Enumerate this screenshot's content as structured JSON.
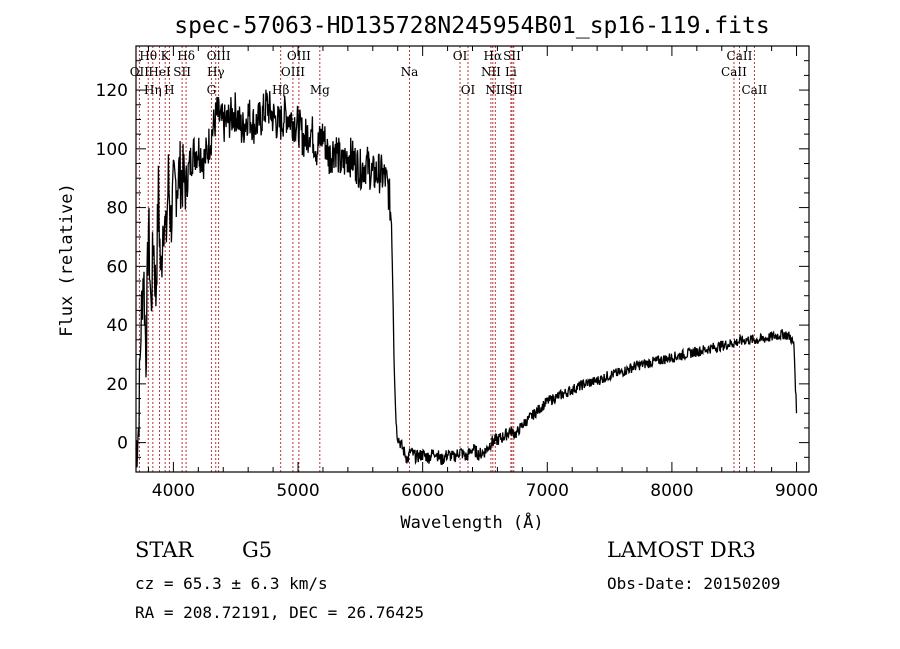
{
  "chart_data": {
    "type": "line",
    "title": "spec-57063-HD135728N245954B01_sp16-119.fits",
    "xlabel": "Wavelength (Å)",
    "ylabel": "Flux (relative)",
    "xlim": [
      3700,
      9100
    ],
    "ylim": [
      -10,
      135
    ],
    "xticks": [
      4000,
      5000,
      6000,
      7000,
      8000,
      9000
    ],
    "yticks": [
      0,
      20,
      40,
      60,
      80,
      100,
      120
    ],
    "grid": false,
    "series": [
      {
        "x": [
          3700,
          3720,
          3740,
          3760,
          3780,
          3800,
          3820,
          3840,
          3860,
          3880,
          3900,
          3920,
          3940,
          3960,
          3980,
          4000,
          4050,
          4100,
          4150,
          4200,
          4250,
          4300,
          4350,
          4400,
          4450,
          4500,
          4550,
          4600,
          4650,
          4700,
          4750,
          4800,
          4850,
          4900,
          4950,
          5000,
          5050,
          5100,
          5150,
          5200,
          5250,
          5300,
          5350,
          5400,
          5450,
          5500,
          5550,
          5600,
          5650,
          5700,
          5730,
          5750,
          5760,
          5770,
          5780,
          5790,
          5800,
          5820,
          5840,
          5860,
          5880,
          5900,
          5950,
          6000,
          6050,
          6100,
          6150,
          6200,
          6250,
          6300,
          6350,
          6400,
          6450,
          6500,
          6550,
          6600,
          6650,
          6700,
          6750,
          6800,
          6850,
          6900,
          6950,
          7000,
          7100,
          7200,
          7300,
          7400,
          7500,
          7600,
          7700,
          7800,
          7900,
          8000,
          8100,
          8200,
          8300,
          8400,
          8500,
          8600,
          8700,
          8800,
          8900,
          8950,
          8980,
          9000
        ],
        "y": [
          -2,
          5,
          40,
          60,
          30,
          75,
          45,
          70,
          50,
          85,
          55,
          80,
          68,
          90,
          75,
          85,
          92,
          88,
          98,
          100,
          96,
          104,
          112,
          108,
          110,
          113,
          106,
          112,
          108,
          110,
          115,
          111,
          108,
          112,
          110,
          108,
          103,
          107,
          100,
          105,
          97,
          101,
          94,
          98,
          96,
          93,
          95,
          91,
          92,
          90,
          85,
          75,
          55,
          30,
          15,
          5,
          2,
          0,
          -2,
          -4,
          -6,
          -3,
          -5,
          -4,
          -5,
          -3,
          -6,
          -4,
          -5,
          -3,
          -5,
          -2,
          -4,
          -3,
          0,
          1,
          2,
          4,
          3,
          6,
          8,
          10,
          12,
          14,
          16,
          18,
          20,
          21,
          23,
          24,
          26,
          27,
          28,
          29,
          30,
          31,
          32,
          33,
          34,
          35,
          35,
          36,
          37,
          36,
          33,
          10
        ]
      }
    ],
    "line_markers": [
      {
        "label": "Hθ",
        "x": 3798,
        "row": 1
      },
      {
        "label": "OII",
        "x": 3727,
        "row": 2
      },
      {
        "label": "Hη",
        "x": 3835,
        "row": 3
      },
      {
        "label": "HeI",
        "x": 3889,
        "row": 2
      },
      {
        "label": "K",
        "x": 3934,
        "row": 1
      },
      {
        "label": "H",
        "x": 3968,
        "row": 3
      },
      {
        "label": "SII",
        "x": 4070,
        "row": 2
      },
      {
        "label": "Hδ",
        "x": 4102,
        "row": 1
      },
      {
        "label": "G",
        "x": 4305,
        "row": 3
      },
      {
        "label": "Hγ",
        "x": 4340,
        "row": 2
      },
      {
        "label": "OIII",
        "x": 4363,
        "row": 1
      },
      {
        "label": "Hβ",
        "x": 4861,
        "row": 3
      },
      {
        "label": "OIII",
        "x": 4959,
        "row": 2
      },
      {
        "label": "OIII",
        "x": 5007,
        "row": 1
      },
      {
        "label": "Mg",
        "x": 5175,
        "row": 3
      },
      {
        "label": "Na",
        "x": 5894,
        "row": 2
      },
      {
        "label": "OI",
        "x": 6300,
        "row": 1
      },
      {
        "label": "OI",
        "x": 6364,
        "row": 3
      },
      {
        "label": "NII",
        "x": 6548,
        "row": 2
      },
      {
        "label": "Hα",
        "x": 6563,
        "row": 1
      },
      {
        "label": "NII",
        "x": 6583,
        "row": 3
      },
      {
        "label": "Li",
        "x": 6708,
        "row": 2
      },
      {
        "label": "SII",
        "x": 6717,
        "row": 1
      },
      {
        "label": "SII",
        "x": 6731,
        "row": 3
      },
      {
        "label": "CaII",
        "x": 8498,
        "row": 2
      },
      {
        "label": "CaII",
        "x": 8542,
        "row": 1
      },
      {
        "label": "CaII",
        "x": 8662,
        "row": 3
      }
    ]
  },
  "info": {
    "class_label": "STAR",
    "subclass_label": "G5",
    "survey_label": "LAMOST DR3",
    "cz_text": "cz = 65.3 ± 6.3 km/s",
    "obs_date_text": "Obs-Date: 20150209",
    "coords_text": "RA = 208.72191, DEC =  26.76425"
  }
}
